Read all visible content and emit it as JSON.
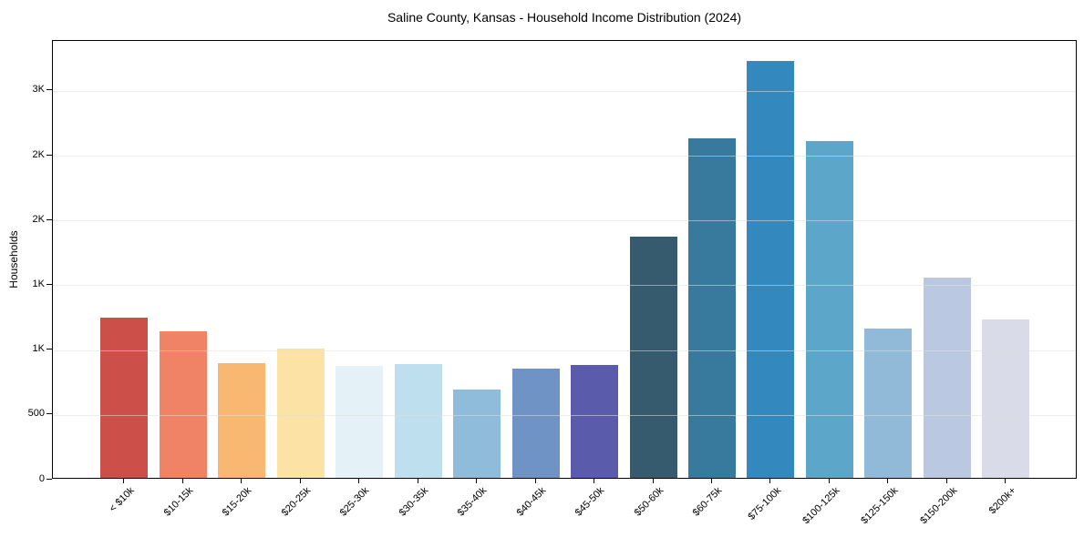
{
  "chart_data": {
    "type": "bar",
    "title": "Saline County, Kansas - Household Income Distribution (2024)",
    "xlabel": "",
    "ylabel": "Households",
    "categories": [
      "< $10k",
      "$10-15k",
      "$15-20k",
      "$20-25k",
      "$25-30k",
      "$30-35k",
      "$35-40k",
      "$40-45k",
      "$45-50k",
      "$50-60k",
      "$60-75k",
      "$75-100k",
      "$100-125k",
      "$125-150k",
      "$150-200k",
      "$200k+"
    ],
    "values": [
      1235,
      1130,
      885,
      1000,
      865,
      880,
      680,
      845,
      870,
      1860,
      2620,
      3220,
      2600,
      1150,
      1545,
      1220
    ],
    "bar_colors": [
      "#cd4f4a",
      "#f08365",
      "#f8b871",
      "#fce3a5",
      "#e4f1f7",
      "#bedfed",
      "#8fbcdb",
      "#6e93c4",
      "#5a5cab",
      "#365b6e",
      "#377a9d",
      "#3389bd",
      "#5ba6c9",
      "#91bad8",
      "#bac9e1",
      "#d9dbe8"
    ],
    "ylim": [
      0,
      3385
    ],
    "yticks": [
      {
        "value": 0,
        "label": "0"
      },
      {
        "value": 500,
        "label": "500"
      },
      {
        "value": 1000,
        "label": "1K"
      },
      {
        "value": 1500,
        "label": "1K"
      },
      {
        "value": 2000,
        "label": "2K"
      },
      {
        "value": 2500,
        "label": "2K"
      },
      {
        "value": 3000,
        "label": "3K"
      }
    ],
    "grid": "horizontal-major",
    "legend_position": "none",
    "colors": {
      "grid": "#e8e8e8",
      "grid_over_bars": "rgba(222,222,222,0.55)",
      "axis": "#000000",
      "text": "#000000",
      "background": "#ffffff"
    }
  }
}
